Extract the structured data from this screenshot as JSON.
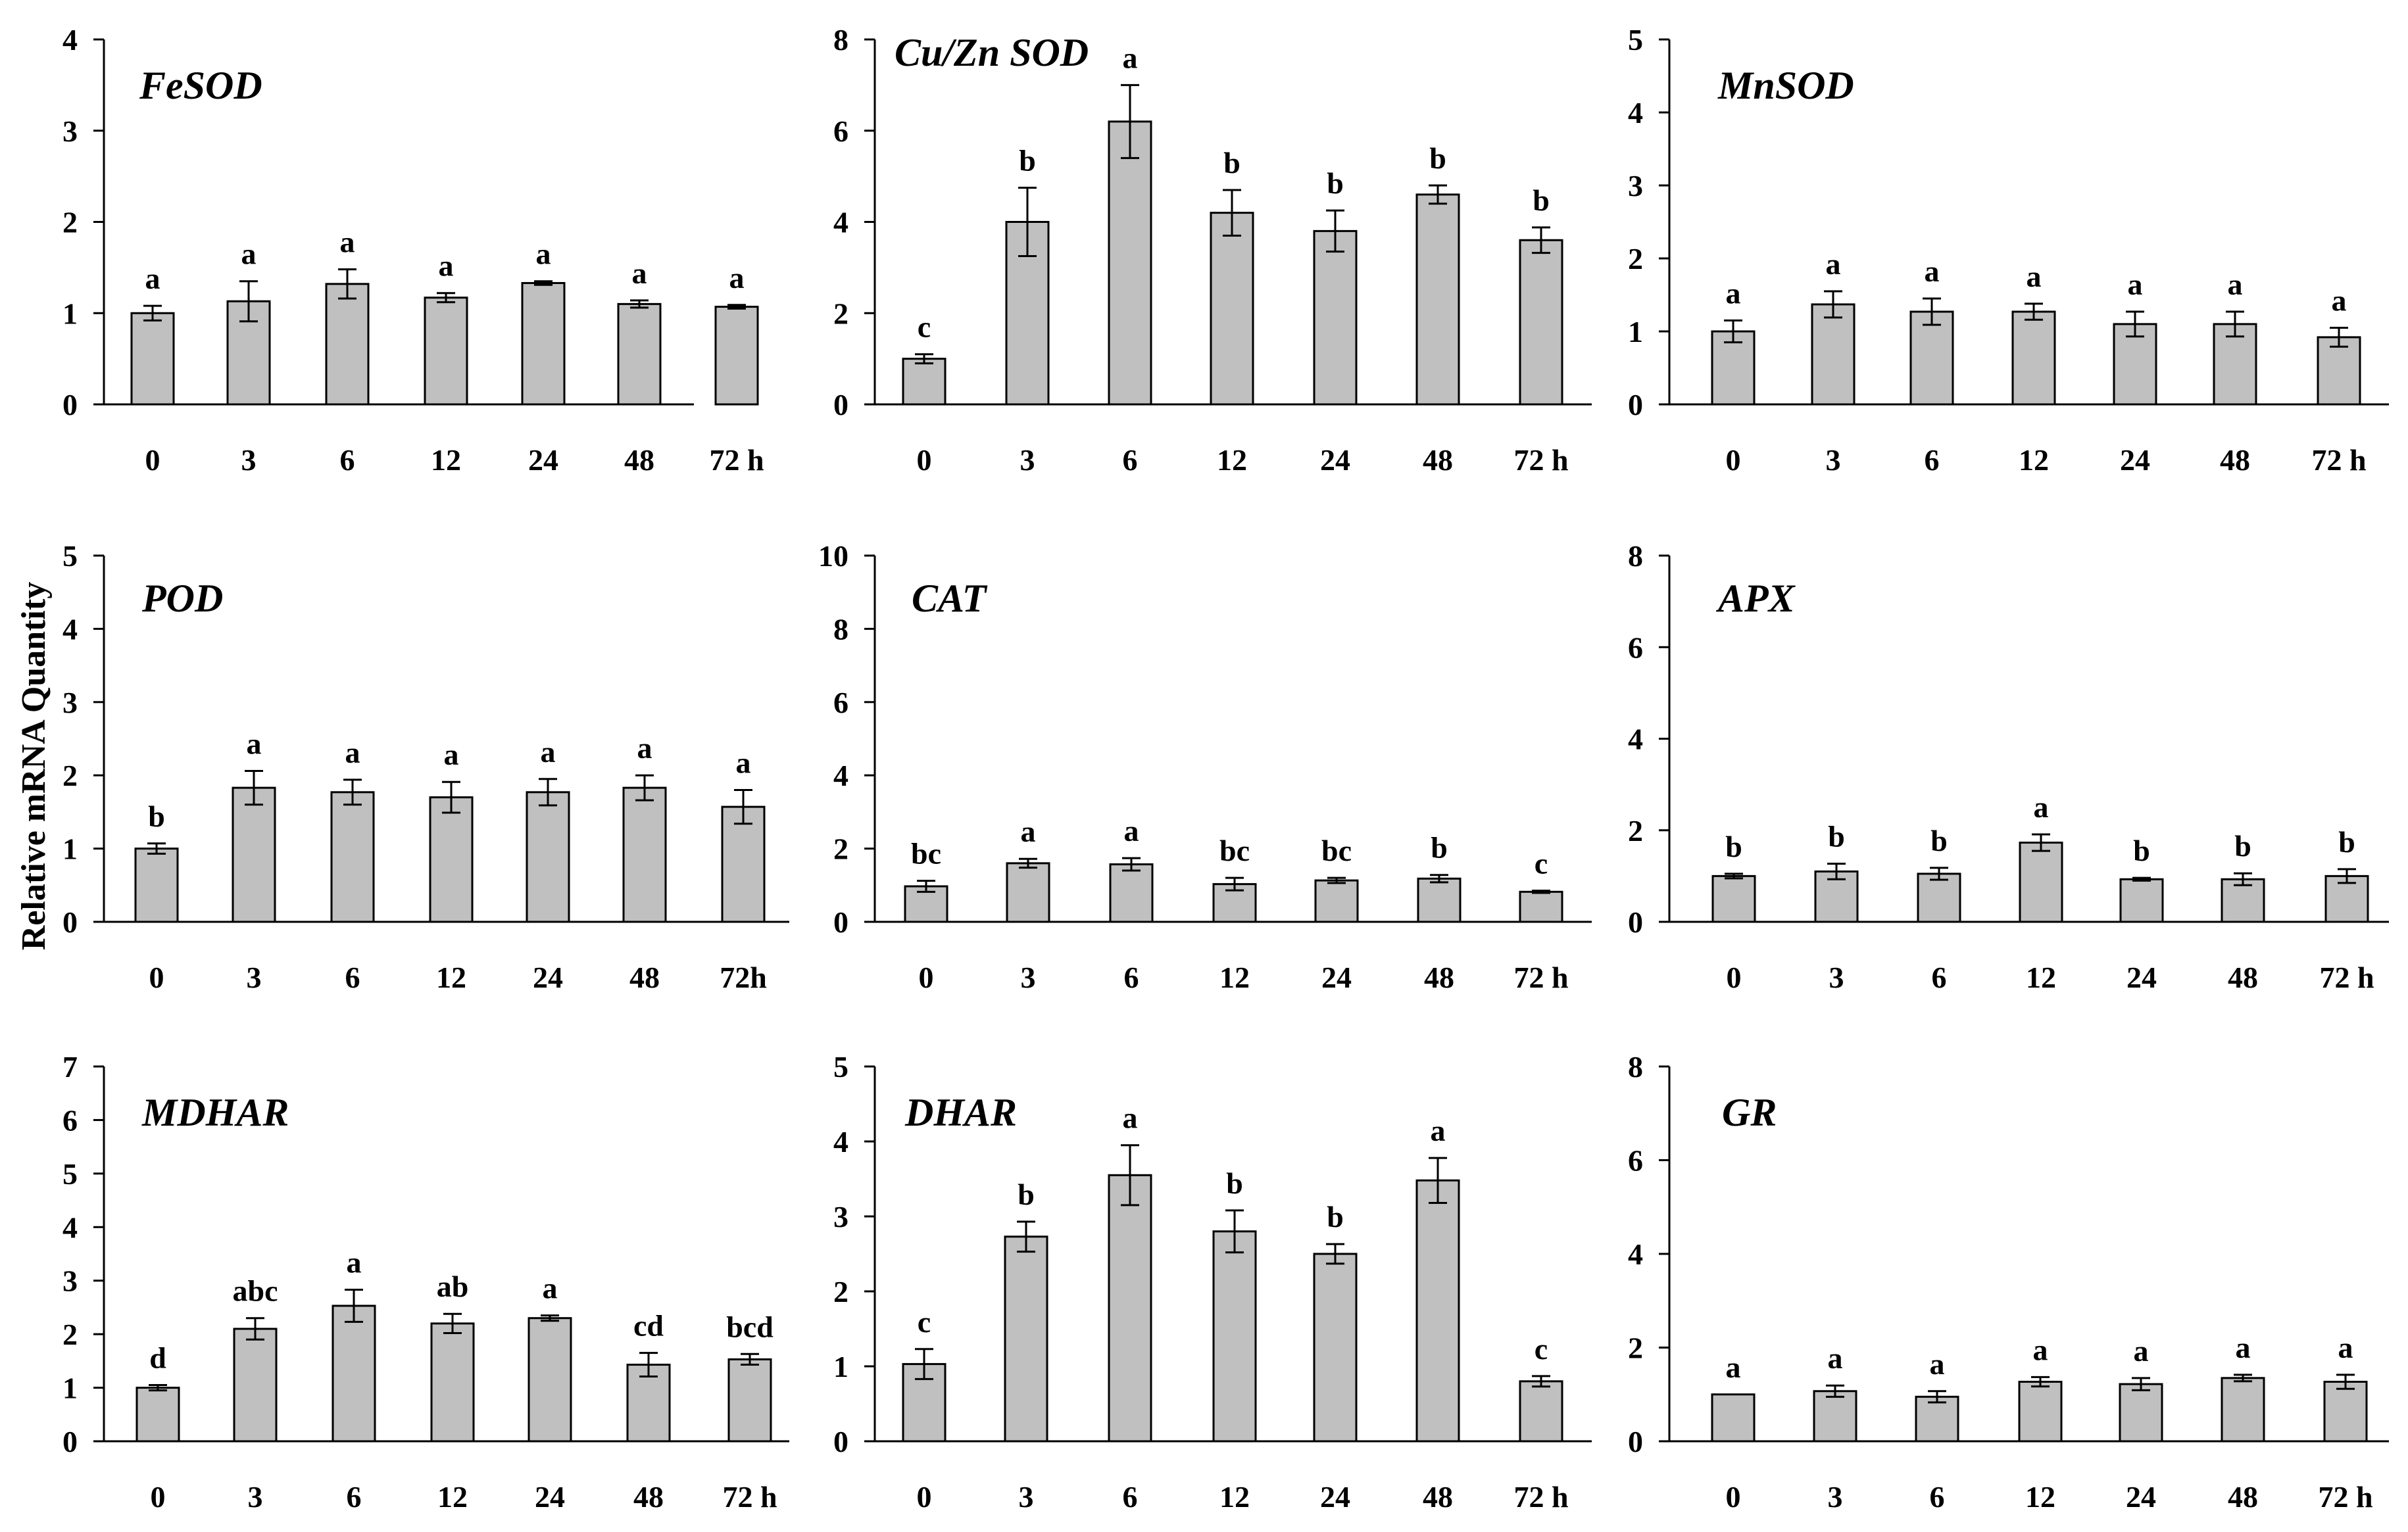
{
  "figure": {
    "ylabel": "Relative mRNA Quantity"
  },
  "chart_data": [
    {
      "type": "bar",
      "title": "FeSOD",
      "categories": [
        "0",
        "3",
        "6",
        "12",
        "24",
        "48",
        "72 h"
      ],
      "values": [
        1.0,
        1.13,
        1.32,
        1.17,
        1.33,
        1.1,
        1.07
      ],
      "errors": [
        0.08,
        0.22,
        0.16,
        0.05,
        0.02,
        0.04,
        0.02
      ],
      "letters": [
        "a",
        "a",
        "a",
        "a",
        "a",
        "a",
        "a"
      ],
      "ylim": [
        0,
        4
      ],
      "yticks": [
        "0",
        "1",
        "2",
        "3",
        "4"
      ],
      "ylabel": "Relative mRNA Quantity"
    },
    {
      "type": "bar",
      "title": "Cu/Zn SOD",
      "categories": [
        "0",
        "3",
        "6",
        "12",
        "24",
        "48",
        "72 h"
      ],
      "values": [
        1.0,
        4.0,
        6.2,
        4.2,
        3.8,
        4.6,
        3.6
      ],
      "errors": [
        0.1,
        0.75,
        0.8,
        0.5,
        0.45,
        0.2,
        0.28
      ],
      "letters": [
        "c",
        "b",
        "a",
        "b",
        "b",
        "b",
        "b"
      ],
      "ylim": [
        0,
        8
      ],
      "yticks": [
        "0",
        "2",
        "4",
        "6",
        "8"
      ],
      "ylabel": "Relative mRNA Quantity"
    },
    {
      "type": "bar",
      "title": "MnSOD",
      "categories": [
        "0",
        "3",
        "6",
        "12",
        "24",
        "48",
        "72 h"
      ],
      "values": [
        1.0,
        1.37,
        1.27,
        1.27,
        1.1,
        1.1,
        0.92
      ],
      "errors": [
        0.15,
        0.18,
        0.18,
        0.11,
        0.17,
        0.17,
        0.13
      ],
      "letters": [
        "a",
        "a",
        "a",
        "a",
        "a",
        "a",
        "a"
      ],
      "ylim": [
        0,
        5
      ],
      "yticks": [
        "0",
        "1",
        "2",
        "3",
        "4",
        "5"
      ],
      "ylabel": "Relative mRNA Quantity"
    },
    {
      "type": "bar",
      "title": "POD",
      "categories": [
        "0",
        "3",
        "6",
        "12",
        "24",
        "48",
        "72h"
      ],
      "values": [
        1.0,
        1.83,
        1.77,
        1.7,
        1.77,
        1.83,
        1.57
      ],
      "errors": [
        0.07,
        0.23,
        0.17,
        0.21,
        0.18,
        0.17,
        0.23
      ],
      "letters": [
        "b",
        "a",
        "a",
        "a",
        "a",
        "a",
        "a"
      ],
      "ylim": [
        0,
        5
      ],
      "yticks": [
        "0",
        "1",
        "2",
        "3",
        "4",
        "5"
      ],
      "ylabel": "Relative mRNA Quantity"
    },
    {
      "type": "bar",
      "title": "CAT",
      "categories": [
        "0",
        "3",
        "6",
        "12",
        "24",
        "48",
        "72 h"
      ],
      "values": [
        0.97,
        1.6,
        1.57,
        1.03,
        1.13,
        1.18,
        0.82
      ],
      "errors": [
        0.15,
        0.12,
        0.17,
        0.17,
        0.07,
        0.1,
        0.03
      ],
      "letters": [
        "bc",
        "a",
        "a",
        "bc",
        "bc",
        "b",
        "c"
      ],
      "ylim": [
        0,
        10
      ],
      "yticks": [
        "0",
        "2",
        "4",
        "6",
        "8",
        "10"
      ],
      "ylabel": "Relative mRNA Quantity"
    },
    {
      "type": "bar",
      "title": "APX",
      "categories": [
        "0",
        "3",
        "6",
        "12",
        "24",
        "48",
        "72 h"
      ],
      "values": [
        1.0,
        1.1,
        1.05,
        1.73,
        0.93,
        0.93,
        1.0
      ],
      "errors": [
        0.05,
        0.17,
        0.13,
        0.18,
        0.03,
        0.13,
        0.15
      ],
      "letters": [
        "b",
        "b",
        "b",
        "a",
        "b",
        "b",
        "b"
      ],
      "ylim": [
        0,
        8
      ],
      "yticks": [
        "0",
        "2",
        "4",
        "6",
        "8"
      ],
      "ylabel": "Relative mRNA Quantity"
    },
    {
      "type": "bar",
      "title": "MDHAR",
      "categories": [
        "0",
        "3",
        "6",
        "12",
        "24",
        "48",
        "72 h"
      ],
      "values": [
        1.0,
        2.1,
        2.53,
        2.2,
        2.3,
        1.43,
        1.53
      ],
      "errors": [
        0.05,
        0.2,
        0.3,
        0.18,
        0.05,
        0.22,
        0.1
      ],
      "letters": [
        "d",
        "abc",
        "a",
        "ab",
        "a",
        "cd",
        "bcd"
      ],
      "ylim": [
        0,
        7
      ],
      "yticks": [
        "0",
        "1",
        "2",
        "3",
        "4",
        "5",
        "6",
        "7"
      ],
      "ylabel": "Relative mRNA Quantity"
    },
    {
      "type": "bar",
      "title": "DHAR",
      "categories": [
        "0",
        "3",
        "6",
        "12",
        "24",
        "48",
        "72 h"
      ],
      "values": [
        1.03,
        2.73,
        3.55,
        2.8,
        2.5,
        3.48,
        0.8
      ],
      "errors": [
        0.2,
        0.2,
        0.4,
        0.28,
        0.13,
        0.3,
        0.07
      ],
      "letters": [
        "c",
        "b",
        "a",
        "b",
        "b",
        "a",
        "c"
      ],
      "ylim": [
        0,
        5
      ],
      "yticks": [
        "0",
        "1",
        "2",
        "3",
        "4",
        "5"
      ],
      "ylabel": "Relative mRNA Quantity"
    },
    {
      "type": "bar",
      "title": "GR",
      "categories": [
        "0",
        "3",
        "6",
        "12",
        "24",
        "48",
        "72 h"
      ],
      "values": [
        1.0,
        1.07,
        0.95,
        1.27,
        1.22,
        1.35,
        1.27
      ],
      "errors": [
        0.0,
        0.12,
        0.12,
        0.1,
        0.13,
        0.07,
        0.15
      ],
      "letters": [
        "a",
        "a",
        "a",
        "a",
        "a",
        "a",
        "a"
      ],
      "ylim": [
        0,
        8
      ],
      "yticks": [
        "0",
        "2",
        "4",
        "6",
        "8"
      ],
      "ylabel": "Relative mRNA Quantity"
    }
  ]
}
